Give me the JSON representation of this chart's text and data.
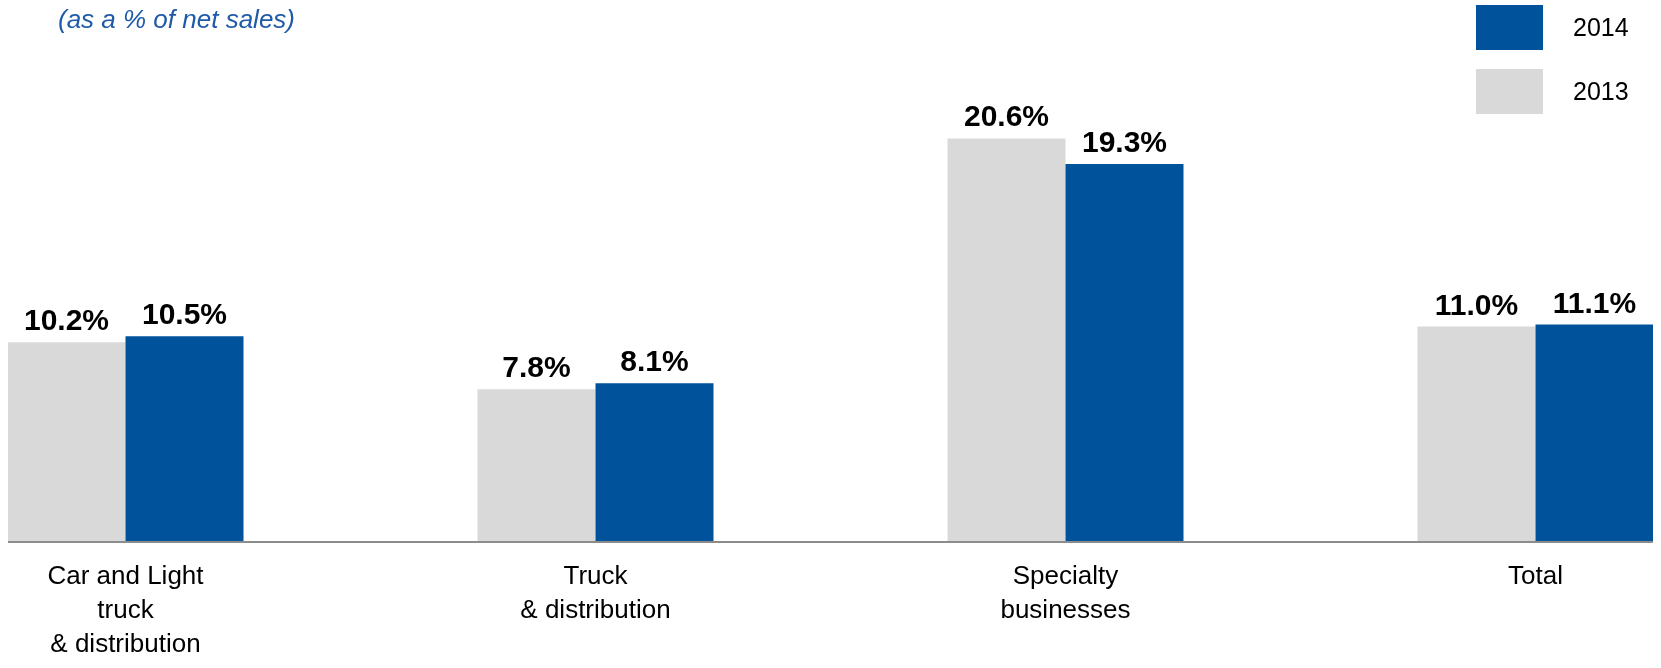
{
  "chart_data": {
    "type": "bar",
    "subtitle": "(as a % of net sales)",
    "categories": [
      "Car and Light\ntruck\n& distribution",
      "Truck\n& distribution",
      "Specialty\nbusinesses",
      "Total"
    ],
    "series": [
      {
        "name": "2013",
        "color": "#d9d9d9",
        "values": [
          10.2,
          7.8,
          20.6,
          11.0
        ],
        "value_labels": [
          "10.2%",
          "7.8%",
          "20.6%",
          "11.0%"
        ]
      },
      {
        "name": "2014",
        "color": "#00529b",
        "values": [
          10.5,
          8.1,
          19.3,
          11.1
        ],
        "value_labels": [
          "10.5%",
          "8.1%",
          "19.3%",
          "11.1%"
        ]
      }
    ],
    "legend": "top right"
  }
}
